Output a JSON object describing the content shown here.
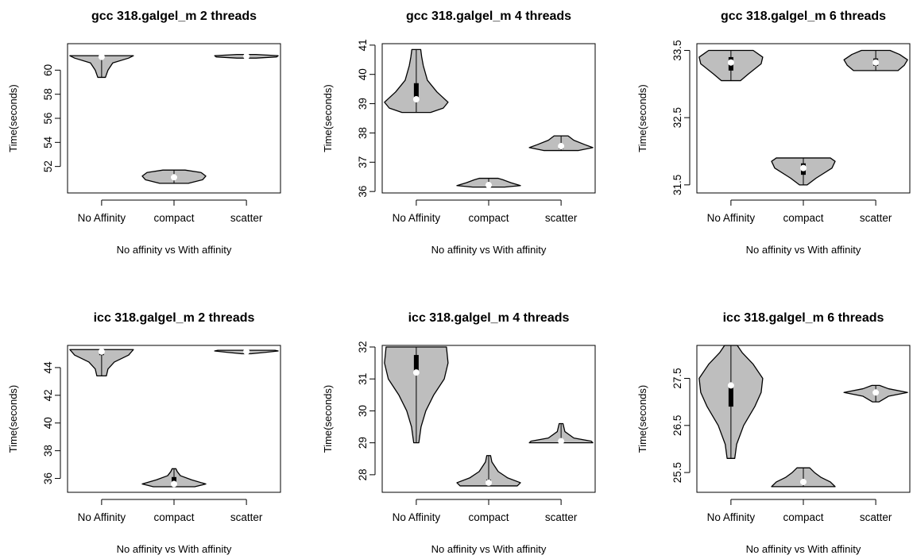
{
  "chart_data": [
    {
      "type": "violin",
      "title": "gcc 318.galgel_m 2 threads",
      "xlabel": "No affinity vs With affinity",
      "ylabel": "Time(seconds)",
      "categories": [
        "No Affinity",
        "compact",
        "scatter"
      ],
      "ylim": [
        49.8,
        62.2
      ],
      "yticks": [
        52,
        54,
        56,
        58,
        60
      ],
      "series": [
        {
          "min": 59.4,
          "q1": 61.0,
          "median": 61.1,
          "q3": 61.15,
          "max": 61.2,
          "shape": [
            [
              59.4,
              0.12
            ],
            [
              60.0,
              0.2
            ],
            [
              60.6,
              0.35
            ],
            [
              61.0,
              0.85
            ],
            [
              61.2,
              1.0
            ]
          ]
        },
        {
          "min": 50.6,
          "q1": 51.0,
          "median": 51.1,
          "q3": 51.3,
          "max": 51.7,
          "shape": [
            [
              50.6,
              0.45
            ],
            [
              50.9,
              0.9
            ],
            [
              51.2,
              1.0
            ],
            [
              51.5,
              0.85
            ],
            [
              51.7,
              0.35
            ]
          ]
        },
        {
          "min": 61.0,
          "q1": 61.1,
          "median": 61.15,
          "q3": 61.2,
          "max": 61.3,
          "shape": [
            [
              61.0,
              0.3
            ],
            [
              61.1,
              0.95
            ],
            [
              61.2,
              1.0
            ],
            [
              61.3,
              0.3
            ]
          ]
        }
      ]
    },
    {
      "type": "violin",
      "title": "gcc 318.galgel_m 4 threads",
      "xlabel": "No affinity vs With affinity",
      "ylabel": "Time(seconds)",
      "categories": [
        "No Affinity",
        "compact",
        "scatter"
      ],
      "ylim": [
        35.95,
        41.05
      ],
      "yticks": [
        36,
        37,
        38,
        39,
        40,
        41
      ],
      "series": [
        {
          "min": 38.7,
          "q1": 39.1,
          "median": 39.15,
          "q3": 39.7,
          "max": 40.85,
          "shape": [
            [
              38.7,
              0.45
            ],
            [
              38.85,
              0.85
            ],
            [
              39.05,
              1.0
            ],
            [
              39.4,
              0.65
            ],
            [
              39.8,
              0.35
            ],
            [
              40.3,
              0.22
            ],
            [
              40.6,
              0.17
            ],
            [
              40.85,
              0.14
            ]
          ]
        },
        {
          "min": 36.15,
          "q1": 36.2,
          "median": 36.22,
          "q3": 36.28,
          "max": 36.45,
          "shape": [
            [
              36.15,
              0.5
            ],
            [
              36.2,
              1.0
            ],
            [
              36.3,
              0.7
            ],
            [
              36.4,
              0.45
            ],
            [
              36.45,
              0.3
            ]
          ]
        },
        {
          "min": 37.4,
          "q1": 37.45,
          "median": 37.55,
          "q3": 37.62,
          "max": 37.9,
          "shape": [
            [
              37.4,
              0.55
            ],
            [
              37.5,
              1.0
            ],
            [
              37.6,
              0.75
            ],
            [
              37.75,
              0.4
            ],
            [
              37.9,
              0.22
            ]
          ]
        }
      ]
    },
    {
      "type": "violin",
      "title": "gcc 318.galgel_m 6 threads",
      "xlabel": "No affinity vs With affinity",
      "ylabel": "Time(seconds)",
      "categories": [
        "No Affinity",
        "compact",
        "scatter"
      ],
      "ylim": [
        31.38,
        33.6
      ],
      "yticks": [
        31.5,
        32.5,
        33.5
      ],
      "yticklabels": [
        "31.5",
        "32.5",
        "33.5"
      ],
      "series": [
        {
          "min": 33.05,
          "q1": 33.2,
          "median": 33.32,
          "q3": 33.4,
          "max": 33.5,
          "shape": [
            [
              33.05,
              0.3
            ],
            [
              33.15,
              0.55
            ],
            [
              33.3,
              0.95
            ],
            [
              33.4,
              1.0
            ],
            [
              33.5,
              0.7
            ]
          ]
        },
        {
          "min": 31.5,
          "q1": 31.65,
          "median": 31.75,
          "q3": 31.82,
          "max": 31.9,
          "shape": [
            [
              31.5,
              0.12
            ],
            [
              31.6,
              0.4
            ],
            [
              31.75,
              0.9
            ],
            [
              31.85,
              1.0
            ],
            [
              31.9,
              0.85
            ]
          ]
        },
        {
          "min": 33.2,
          "q1": 33.27,
          "median": 33.32,
          "q3": 33.38,
          "max": 33.5,
          "shape": [
            [
              33.2,
              0.7
            ],
            [
              33.28,
              0.9
            ],
            [
              33.36,
              1.0
            ],
            [
              33.44,
              0.75
            ],
            [
              33.5,
              0.45
            ]
          ]
        }
      ]
    },
    {
      "type": "violin",
      "title": "icc 318.galgel_m 2 threads",
      "xlabel": "No affinity vs With affinity",
      "ylabel": "Time(seconds)",
      "categories": [
        "No Affinity",
        "compact",
        "scatter"
      ],
      "ylim": [
        35.0,
        45.6
      ],
      "yticks": [
        36,
        38,
        40,
        42,
        44
      ],
      "series": [
        {
          "min": 43.4,
          "q1": 44.9,
          "median": 45.15,
          "q3": 45.2,
          "max": 45.3,
          "shape": [
            [
              43.4,
              0.15
            ],
            [
              43.9,
              0.2
            ],
            [
              44.4,
              0.4
            ],
            [
              44.9,
              0.85
            ],
            [
              45.3,
              1.0
            ]
          ]
        },
        {
          "min": 35.4,
          "q1": 35.6,
          "median": 35.6,
          "q3": 36.1,
          "max": 36.7,
          "shape": [
            [
              35.4,
              0.65
            ],
            [
              35.6,
              1.0
            ],
            [
              35.9,
              0.55
            ],
            [
              36.2,
              0.2
            ],
            [
              36.5,
              0.1
            ],
            [
              36.7,
              0.06
            ]
          ]
        },
        {
          "min": 45.0,
          "q1": 45.1,
          "median": 45.15,
          "q3": 45.2,
          "max": 45.25,
          "shape": [
            [
              45.0,
              0.15
            ],
            [
              45.1,
              0.6
            ],
            [
              45.2,
              1.0
            ],
            [
              45.25,
              0.9
            ]
          ]
        }
      ]
    },
    {
      "type": "violin",
      "title": "icc 318.galgel_m 4 threads",
      "xlabel": "No affinity vs With affinity",
      "ylabel": "Time(seconds)",
      "categories": [
        "No Affinity",
        "compact",
        "scatter"
      ],
      "ylim": [
        27.45,
        32.05
      ],
      "yticks": [
        28,
        29,
        30,
        31,
        32
      ],
      "series": [
        {
          "min": 29.0,
          "q1": 31.2,
          "median": 31.2,
          "q3": 31.75,
          "max": 32.0,
          "shape": [
            [
              29.0,
              0.08
            ],
            [
              29.5,
              0.15
            ],
            [
              30.0,
              0.3
            ],
            [
              30.5,
              0.55
            ],
            [
              31.0,
              0.88
            ],
            [
              31.5,
              1.0
            ],
            [
              32.0,
              0.95
            ]
          ]
        },
        {
          "min": 27.65,
          "q1": 27.7,
          "median": 27.75,
          "q3": 27.85,
          "max": 28.6,
          "shape": [
            [
              27.65,
              0.9
            ],
            [
              27.75,
              1.0
            ],
            [
              27.9,
              0.6
            ],
            [
              28.1,
              0.3
            ],
            [
              28.4,
              0.1
            ],
            [
              28.6,
              0.06
            ]
          ]
        },
        {
          "min": 29.0,
          "q1": 29.02,
          "median": 29.05,
          "q3": 29.1,
          "max": 29.6,
          "shape": [
            [
              29.0,
              1.0
            ],
            [
              29.05,
              0.95
            ],
            [
              29.15,
              0.4
            ],
            [
              29.35,
              0.12
            ],
            [
              29.6,
              0.06
            ]
          ]
        }
      ]
    },
    {
      "type": "violin",
      "title": "icc 318.galgel_m 6 threads",
      "xlabel": "No affinity vs With affinity",
      "ylabel": "Time(seconds)",
      "categories": [
        "No Affinity",
        "compact",
        "scatter"
      ],
      "ylim": [
        25.08,
        28.2
      ],
      "yticks": [
        25.5,
        26.5,
        27.5
      ],
      "yticklabels": [
        "25.5",
        "26.5",
        "27.5"
      ],
      "series": [
        {
          "min": 25.8,
          "q1": 26.9,
          "median": 27.35,
          "q3": 27.4,
          "max": 28.2,
          "shape": [
            [
              25.8,
              0.12
            ],
            [
              26.1,
              0.18
            ],
            [
              26.5,
              0.4
            ],
            [
              26.9,
              0.75
            ],
            [
              27.2,
              0.95
            ],
            [
              27.5,
              1.0
            ],
            [
              27.8,
              0.7
            ],
            [
              28.05,
              0.35
            ],
            [
              28.2,
              0.2
            ]
          ]
        },
        {
          "min": 25.2,
          "q1": 25.25,
          "median": 25.3,
          "q3": 25.35,
          "max": 25.6,
          "shape": [
            [
              25.2,
              1.0
            ],
            [
              25.3,
              0.85
            ],
            [
              25.4,
              0.55
            ],
            [
              25.5,
              0.35
            ],
            [
              25.6,
              0.2
            ]
          ]
        },
        {
          "min": 27.0,
          "q1": 27.17,
          "median": 27.2,
          "q3": 27.25,
          "max": 27.35,
          "shape": [
            [
              27.0,
              0.1
            ],
            [
              27.12,
              0.4
            ],
            [
              27.2,
              1.0
            ],
            [
              27.28,
              0.4
            ],
            [
              27.35,
              0.12
            ]
          ]
        }
      ]
    }
  ]
}
